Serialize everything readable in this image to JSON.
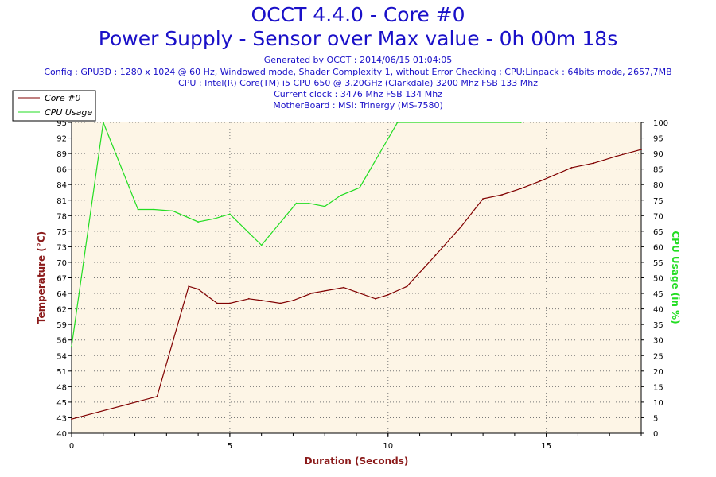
{
  "header": {
    "title": "OCCT 4.4.0 - Core #0",
    "subtitle": "Power Supply - Sensor over Max value - 0h 00m 18s",
    "generated": "Generated by OCCT : 2014/06/15 01:04:05",
    "config": "Config : GPU3D : 1280 x 1024 @ 60 Hz, Windowed mode, Shader Complexity 1, without Error Checking ; CPU:Linpack : 64bits mode, 2657,7MB",
    "cpu": "CPU : Intel(R) Core(TM) i5 CPU 650 @ 3.20GHz (Clarkdale) 3200 Mhz FSB 133 Mhz",
    "clock": "Current clock : 3476 Mhz FSB 134 Mhz",
    "motherboard": "MotherBoard : MSI: Trinergy (MS-7580)"
  },
  "colors": {
    "title": "#1a10c8",
    "plot_background": "#fdf5e6",
    "temperature": "#800000",
    "cpu_usage": "#22dd22",
    "left_axis_title": "#8b1a1a",
    "right_axis_title": "#22dd22",
    "x_axis_title": "#8b1a1a"
  },
  "chart_data": {
    "type": "line",
    "xlabel": "Duration (Seconds)",
    "ylabel_left": "Temperature (°C)",
    "ylabel_right": "CPU Usage (in %)",
    "xlim": [
      0,
      18
    ],
    "ylim_left": [
      40,
      95
    ],
    "ylim_right": [
      0,
      100
    ],
    "x_ticks": [
      "0",
      "5",
      "10",
      "15"
    ],
    "y_ticks_left": [
      "40",
      "43",
      "45",
      "48",
      "51",
      "54",
      "56",
      "59",
      "62",
      "64",
      "67",
      "70",
      "73",
      "75",
      "78",
      "81",
      "84",
      "86",
      "89",
      "92",
      "95"
    ],
    "y_ticks_right": [
      "0",
      "5",
      "10",
      "15",
      "20",
      "25",
      "30",
      "35",
      "40",
      "45",
      "50",
      "55",
      "60",
      "65",
      "70",
      "75",
      "80",
      "85",
      "90",
      "95",
      "100"
    ],
    "grid": true,
    "legend_position": "top-left",
    "series": [
      {
        "name": "Core #0",
        "axis": "left",
        "color": "#800000",
        "points": [
          [
            0,
            42.5
          ],
          [
            2.7,
            46.5
          ],
          [
            3.7,
            66
          ],
          [
            4.0,
            65.5
          ],
          [
            4.6,
            63
          ],
          [
            5.0,
            63
          ],
          [
            5.6,
            63.8
          ],
          [
            6.0,
            63.5
          ],
          [
            6.6,
            63
          ],
          [
            7.0,
            63.5
          ],
          [
            7.6,
            64.8
          ],
          [
            8.0,
            65.2
          ],
          [
            8.6,
            65.8
          ],
          [
            9.0,
            65
          ],
          [
            9.6,
            63.8
          ],
          [
            10.0,
            64.5
          ],
          [
            10.6,
            66
          ],
          [
            11.5,
            71.5
          ],
          [
            12.3,
            76.5
          ],
          [
            13.0,
            81.5
          ],
          [
            13.6,
            82.2
          ],
          [
            14.2,
            83.3
          ],
          [
            14.8,
            84.6
          ],
          [
            15.8,
            87
          ],
          [
            16.5,
            87.8
          ],
          [
            17.2,
            89
          ],
          [
            18.0,
            90.2
          ]
        ]
      },
      {
        "name": "CPU Usage",
        "axis": "right",
        "color": "#22dd22",
        "points": [
          [
            0,
            28
          ],
          [
            1.0,
            100
          ],
          [
            2.1,
            72
          ],
          [
            2.6,
            72
          ],
          [
            3.2,
            71.5
          ],
          [
            4.0,
            68
          ],
          [
            4.5,
            69
          ],
          [
            5.0,
            70.5
          ],
          [
            6.0,
            60.5
          ],
          [
            7.1,
            74
          ],
          [
            7.5,
            74
          ],
          [
            8.0,
            73
          ],
          [
            8.5,
            76.5
          ],
          [
            9.1,
            79
          ],
          [
            10.3,
            100
          ],
          [
            14.2,
            100
          ]
        ]
      }
    ]
  }
}
